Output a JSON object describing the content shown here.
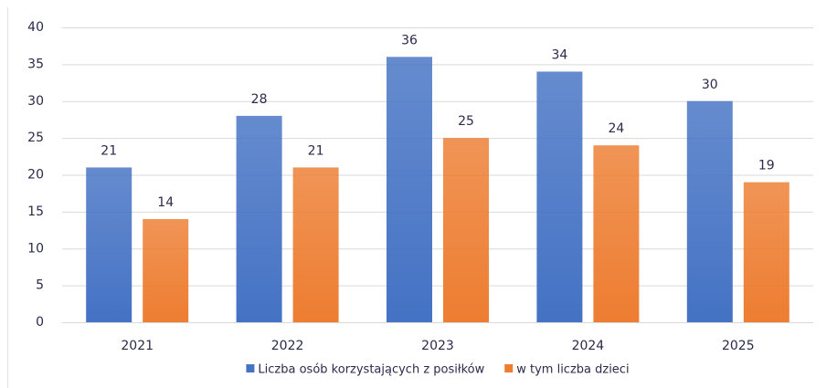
{
  "chart_data": {
    "type": "bar",
    "categories": [
      "2021",
      "2022",
      "2023",
      "2024",
      "2025"
    ],
    "series": [
      {
        "name": "Liczba osób korzystających z posiłków",
        "color": "#4472c4",
        "values": [
          21,
          28,
          36,
          34,
          30
        ]
      },
      {
        "name": "w tym liczba dzieci",
        "color": "#ed7d31",
        "values": [
          14,
          21,
          25,
          24,
          19
        ]
      }
    ],
    "ylim": [
      0,
      40
    ],
    "yticks": [
      0,
      5,
      10,
      15,
      20,
      25,
      30,
      35,
      40
    ],
    "grid": true,
    "legend": "bottom"
  }
}
